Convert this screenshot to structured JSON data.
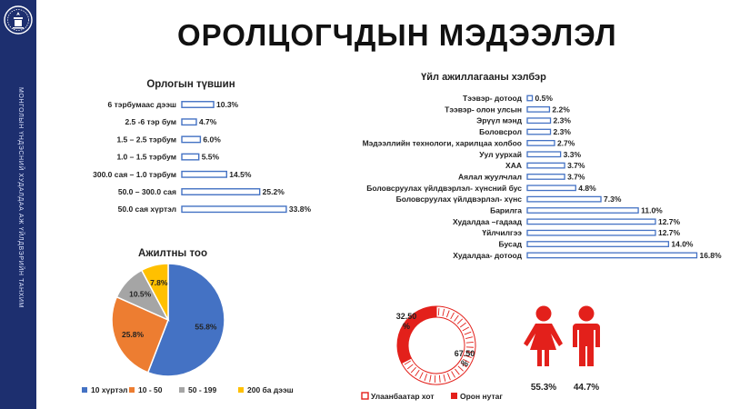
{
  "sidebar": {
    "text": "МОНГОЛЫН ҮНДЭСНИЙ ХУДАЛДАА АЖ ҮЙЛДВЭРИЙН ТАНХИМ"
  },
  "page": {
    "title": "ОРОЛЦОГЧДЫН МЭДЭЭЛЭЛ"
  },
  "colors": {
    "sidebar": "#1d2f6f",
    "bar_stroke": "#4472c4",
    "blue": "#4472c4",
    "orange": "#ed7d31",
    "gray": "#a5a5a5",
    "yellow": "#ffc000",
    "red": "#e3201b"
  },
  "chart_data": [
    {
      "type": "bar",
      "orientation": "horizontal",
      "title": "Орлогын түвшин",
      "categories": [
        "6 тэрбумаас дээш",
        "2.5 -6 тэр бум",
        "1.5 – 2.5 тэрбум",
        "1.0 – 1.5 тэрбум",
        "300.0 сая – 1.0 тэрбум",
        "50.0 – 300.0 сая",
        "50.0 сая хүртэл"
      ],
      "values": [
        10.3,
        4.7,
        6.0,
        5.5,
        14.5,
        25.2,
        33.8
      ],
      "value_labels": [
        "10.3%",
        "4.7%",
        "6.0%",
        "5.5%",
        "14.5%",
        "25.2%",
        "33.8%"
      ]
    },
    {
      "type": "bar",
      "orientation": "horizontal",
      "title": "Үйл ажиллагааны хэлбэр",
      "categories": [
        "Тээвэр- дотоод",
        "Тээвэр- олон улсын",
        "Эрүүл мэнд",
        "Боловсрол",
        "Мэдээллийн технологи, харилцаа холбоо",
        "Уул уурхай",
        "ХАА",
        "Аялал жуулчлал",
        "Боловсруулах үйлдвэрлэл- хүнсний бус",
        "Боловсруулах үйлдвэрлэл- хүнс",
        "Барилга",
        "Худалдаа –гадаад",
        "Үйлчилгээ",
        "Бусад",
        "Худалдаа- дотоод"
      ],
      "values": [
        0.5,
        2.2,
        2.3,
        2.3,
        2.7,
        3.3,
        3.7,
        3.7,
        4.8,
        7.3,
        11.0,
        12.7,
        12.7,
        14.0,
        16.8
      ],
      "value_labels": [
        "0.5%",
        "2.2%",
        "2.3%",
        "2.3%",
        "2.7%",
        "3.3%",
        "3.7%",
        "3.7%",
        "4.8%",
        "7.3%",
        "11.0%",
        "12.7%",
        "12.7%",
        "14.0%",
        "16.8%"
      ]
    },
    {
      "type": "pie",
      "title": "Ажилтны тоо",
      "categories": [
        "10 хүртэл",
        "10 - 50",
        "50 - 199",
        "200 ба дээш"
      ],
      "values": [
        55.8,
        25.8,
        10.5,
        7.8
      ],
      "value_labels": [
        "55.8%",
        "25.8%",
        "10.5%",
        "7.8%"
      ],
      "colors": [
        "#4472c4",
        "#ed7d31",
        "#a5a5a5",
        "#ffc000"
      ],
      "legend": "bottom"
    },
    {
      "type": "pie",
      "variant": "donut",
      "categories": [
        "Улаанбаатар хот",
        "Орон нутаг"
      ],
      "values": [
        67.5,
        32.5
      ],
      "value_labels": [
        "67.50\n%",
        "32.50\n%"
      ],
      "legend": "bottom"
    },
    {
      "type": "bar",
      "variant": "pictogram",
      "categories": [
        "female",
        "male"
      ],
      "values": [
        55.3,
        44.7
      ],
      "value_labels": [
        "55.3%",
        "44.7%"
      ]
    }
  ]
}
